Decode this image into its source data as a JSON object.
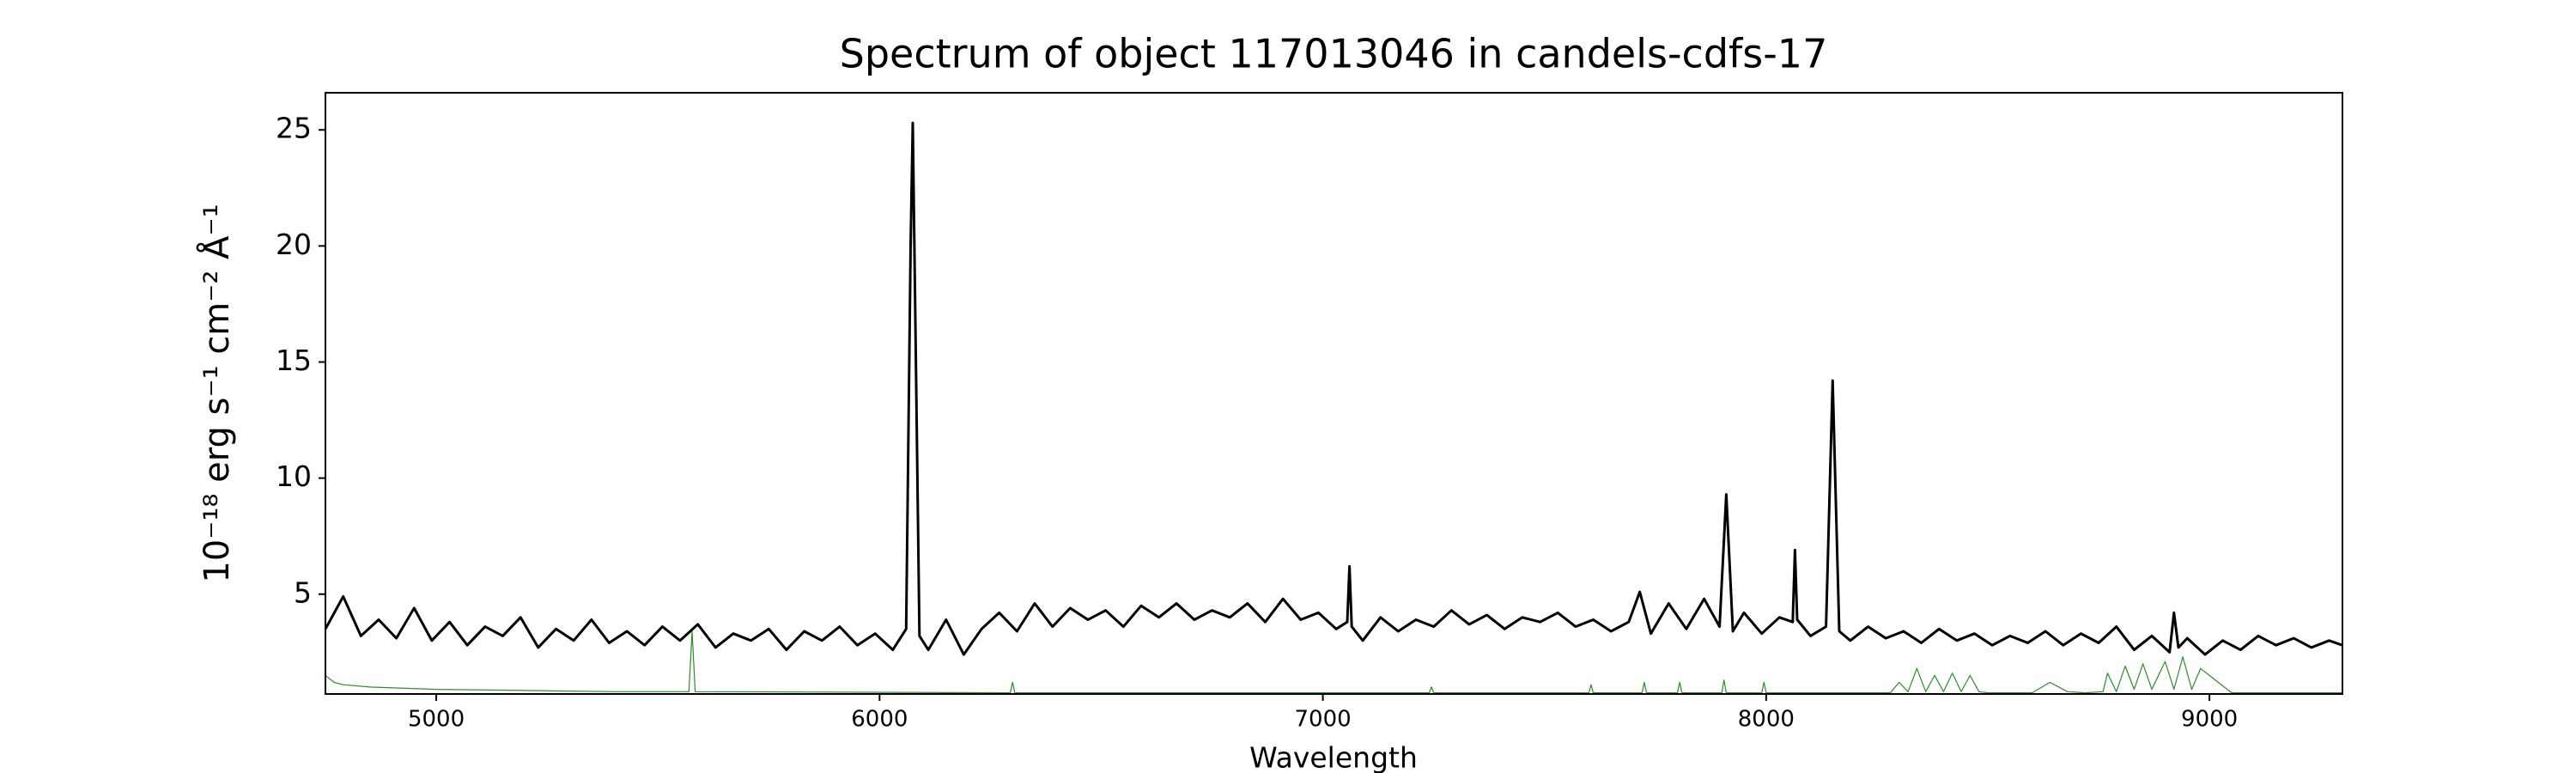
{
  "chart_data": {
    "type": "line",
    "title": "Spectrum of object 117013046 in candels-cdfs-17",
    "xlabel": "Wavelength",
    "ylabel": "10⁻¹⁸ erg s⁻¹ cm⁻² Å⁻¹",
    "xlim": [
      4750,
      9300
    ],
    "ylim": [
      0.7,
      26.6
    ],
    "xticks": [
      5000,
      6000,
      7000,
      8000,
      9000
    ],
    "yticks": [
      5,
      10,
      15,
      20,
      25
    ],
    "series": [
      {
        "color": "#2e8b2e",
        "width": 1.2,
        "x": [
          4750,
          4770,
          4790,
          4850,
          5000,
          5200,
          5400,
          5570,
          5577,
          5584,
          6295,
          6300,
          6305,
          7240,
          7245,
          7250,
          7600,
          7605,
          7610,
          7720,
          7725,
          7730,
          7800,
          7805,
          7810,
          7900,
          7905,
          7910,
          7990,
          7995,
          8000,
          8280,
          8300,
          8320,
          8340,
          8360,
          8380,
          8400,
          8420,
          8440,
          8460,
          8480,
          8500,
          8600,
          8640,
          8680,
          8720,
          8760,
          8770,
          8790,
          8810,
          8830,
          8850,
          8870,
          8900,
          8920,
          8940,
          8960,
          8980,
          9000,
          9050,
          9300
        ],
        "values": [
          1.5,
          1.2,
          1.1,
          1.0,
          0.9,
          0.85,
          0.8,
          0.8,
          3.4,
          0.8,
          0.75,
          1.2,
          0.75,
          0.75,
          1.0,
          0.75,
          0.75,
          1.1,
          0.75,
          0.75,
          1.2,
          0.75,
          0.75,
          1.2,
          0.75,
          0.75,
          1.3,
          0.75,
          0.75,
          1.2,
          0.75,
          0.75,
          1.2,
          0.8,
          1.8,
          0.8,
          1.5,
          0.8,
          1.6,
          0.8,
          1.5,
          0.8,
          0.75,
          0.75,
          1.2,
          0.8,
          0.75,
          0.8,
          1.6,
          0.8,
          1.9,
          0.9,
          2.0,
          0.9,
          2.1,
          0.9,
          2.3,
          0.9,
          1.8,
          1.5,
          0.75,
          0.75
        ]
      },
      {
        "color": "#000000",
        "width": 3,
        "x": [
          4750,
          4790,
          4830,
          4870,
          4910,
          4950,
          4990,
          5030,
          5070,
          5110,
          5150,
          5190,
          5230,
          5270,
          5310,
          5350,
          5390,
          5430,
          5470,
          5510,
          5550,
          5590,
          5630,
          5670,
          5710,
          5750,
          5790,
          5830,
          5870,
          5910,
          5950,
          5990,
          6030,
          6060,
          6070,
          6075,
          6080,
          6090,
          6110,
          6150,
          6190,
          6230,
          6270,
          6310,
          6350,
          6390,
          6430,
          6470,
          6510,
          6550,
          6590,
          6630,
          6670,
          6710,
          6750,
          6790,
          6830,
          6870,
          6910,
          6950,
          6990,
          7030,
          7055,
          7060,
          7065,
          7090,
          7130,
          7170,
          7210,
          7250,
          7290,
          7330,
          7370,
          7410,
          7450,
          7490,
          7530,
          7570,
          7610,
          7650,
          7690,
          7715,
          7740,
          7780,
          7820,
          7860,
          7895,
          7910,
          7925,
          7950,
          7990,
          8030,
          8060,
          8065,
          8070,
          8100,
          8135,
          8150,
          8165,
          8190,
          8230,
          8270,
          8310,
          8350,
          8390,
          8430,
          8470,
          8510,
          8550,
          8590,
          8630,
          8670,
          8710,
          8750,
          8790,
          8830,
          8870,
          8910,
          8920,
          8930,
          8950,
          8990,
          9030,
          9070,
          9110,
          9150,
          9190,
          9230,
          9270,
          9300
        ],
        "values": [
          3.5,
          4.9,
          3.2,
          3.9,
          3.1,
          4.4,
          3.0,
          3.8,
          2.8,
          3.6,
          3.2,
          4.0,
          2.7,
          3.5,
          3.0,
          3.9,
          2.9,
          3.4,
          2.8,
          3.6,
          3.0,
          3.7,
          2.7,
          3.3,
          3.0,
          3.5,
          2.6,
          3.4,
          3.0,
          3.6,
          2.8,
          3.3,
          2.6,
          3.5,
          20.0,
          25.3,
          18.0,
          3.2,
          2.6,
          3.9,
          2.4,
          3.5,
          4.2,
          3.4,
          4.6,
          3.6,
          4.4,
          3.9,
          4.3,
          3.6,
          4.5,
          4.0,
          4.6,
          3.9,
          4.3,
          4.0,
          4.6,
          3.8,
          4.8,
          3.9,
          4.2,
          3.5,
          3.8,
          6.2,
          3.6,
          3.0,
          4.0,
          3.4,
          3.9,
          3.6,
          4.3,
          3.7,
          4.1,
          3.5,
          4.0,
          3.8,
          4.2,
          3.6,
          3.9,
          3.4,
          3.8,
          5.1,
          3.3,
          4.6,
          3.5,
          4.8,
          3.6,
          9.3,
          3.4,
          4.2,
          3.3,
          4.0,
          3.8,
          6.9,
          3.9,
          3.2,
          3.6,
          14.2,
          3.4,
          3.0,
          3.6,
          3.1,
          3.4,
          2.9,
          3.5,
          3.0,
          3.3,
          2.8,
          3.2,
          2.9,
          3.4,
          2.8,
          3.3,
          2.9,
          3.6,
          2.6,
          3.2,
          2.5,
          4.2,
          2.7,
          3.1,
          2.4,
          3.0,
          2.6,
          3.2,
          2.8,
          3.1,
          2.7,
          3.0,
          2.8
        ]
      }
    ]
  }
}
